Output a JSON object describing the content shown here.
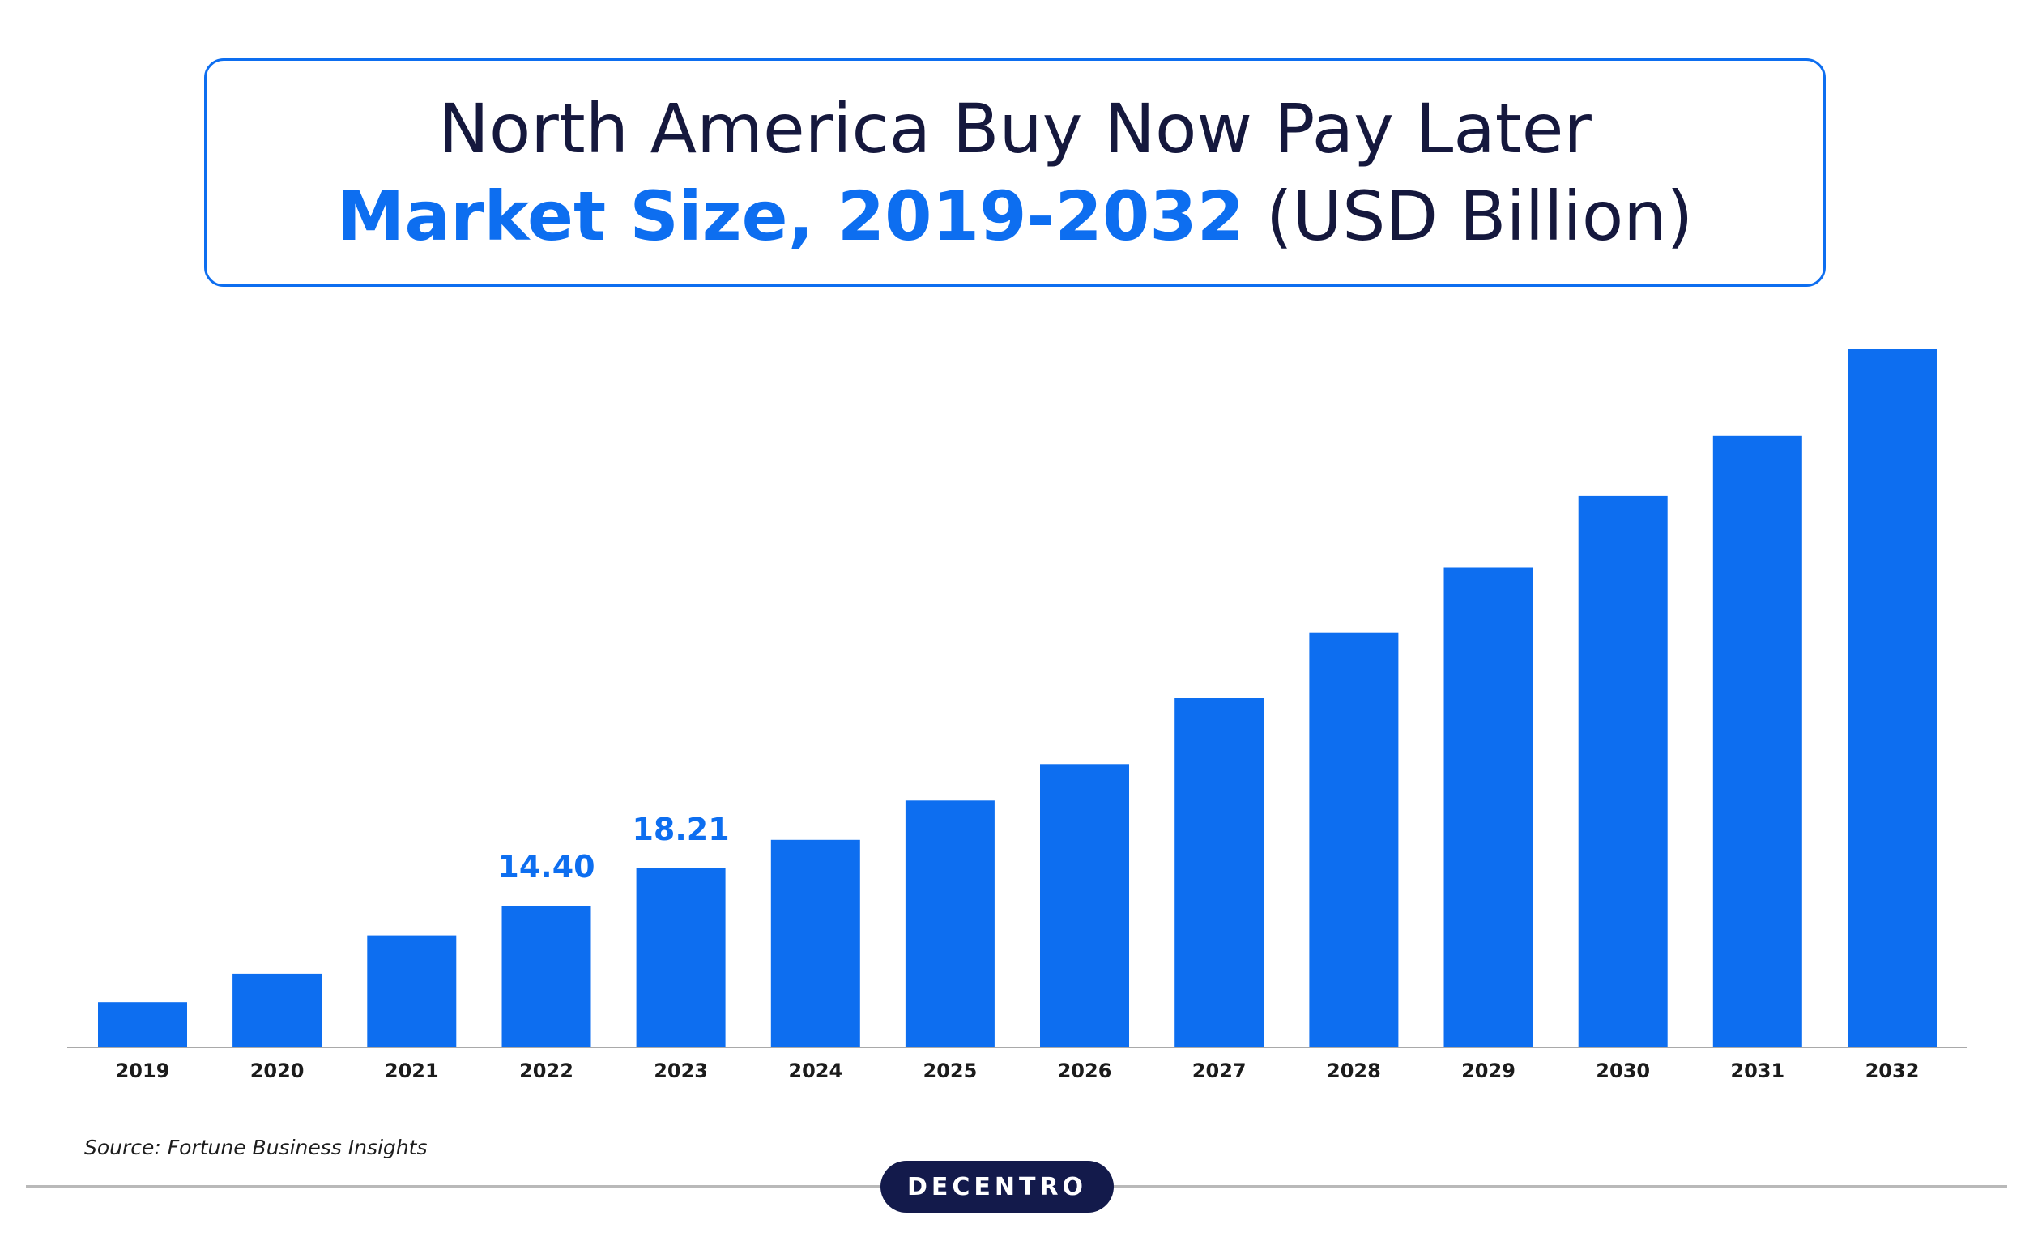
{
  "title": {
    "line1": "North America Buy Now Pay Later",
    "line2_accent": "Market Size, 2019-2032",
    "line2_rest": " (USD Billion)"
  },
  "chart_data": {
    "type": "bar",
    "title": "North America Buy Now Pay Later Market Size, 2019-2032 (USD Billion)",
    "xlabel": "",
    "ylabel": "",
    "categories": [
      "2019",
      "2020",
      "2021",
      "2022",
      "2023",
      "2024",
      "2025",
      "2026",
      "2027",
      "2028",
      "2029",
      "2030",
      "2031",
      "2032"
    ],
    "values": [
      4.6,
      7.5,
      11.4,
      14.4,
      18.21,
      21.1,
      25.1,
      28.8,
      35.5,
      42.2,
      48.8,
      56.1,
      62.2,
      71.0
    ],
    "data_labels": [
      {
        "category": "2022",
        "text": "14.40"
      },
      {
        "category": "2023",
        "text": "18.21"
      }
    ],
    "ylim": [
      0,
      71
    ],
    "grid": false,
    "legend": "none",
    "bar_color": "#0d6ef0",
    "label_color": "#0d6ef0"
  },
  "source": "Source: Fortune Business Insights",
  "logo": "DECENTRO",
  "colors": {
    "accent": "#0d6ef0",
    "dark": "#15183d",
    "logo_bg": "#131a4b"
  }
}
